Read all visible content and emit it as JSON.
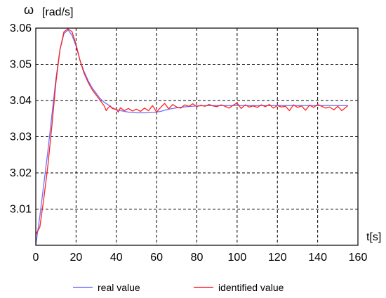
{
  "chart_data": {
    "type": "line",
    "ylabel_symbol": "ω",
    "ylabel_unit": "[rad/s]",
    "xlabel": "t[s]",
    "xlim": [
      0,
      160
    ],
    "ylim": [
      3.0,
      3.06
    ],
    "grid": true,
    "x_ticks": [
      0,
      20,
      40,
      60,
      80,
      100,
      120,
      140,
      160
    ],
    "x_tick_labels": [
      "0",
      "20",
      "40",
      "60",
      "80",
      "100",
      "120",
      "140",
      "160"
    ],
    "y_ticks": [
      3.01,
      3.02,
      3.03,
      3.04,
      3.05,
      3.06
    ],
    "y_tick_labels": [
      "3.01",
      "3.02",
      "3.03",
      "3.04",
      "3.05",
      "3.06"
    ],
    "legend_position": "bottom",
    "series": [
      {
        "name": "real value",
        "color": "#6f6fff",
        "x": [
          0,
          2,
          4,
          6,
          8,
          10,
          12,
          14,
          16,
          18,
          20,
          22,
          24,
          26,
          28,
          30,
          32,
          34,
          36,
          38,
          40,
          42,
          44,
          46,
          48,
          50,
          52,
          55,
          58,
          60,
          62,
          64,
          66,
          70,
          75,
          80,
          85,
          90,
          95,
          100,
          105,
          110,
          115,
          120,
          125,
          130,
          135,
          140,
          145,
          150,
          155
        ],
        "y": [
          3.0,
          3.008,
          3.017,
          3.026,
          3.036,
          3.046,
          3.054,
          3.0585,
          3.0595,
          3.058,
          3.055,
          3.051,
          3.048,
          3.0455,
          3.0435,
          3.042,
          3.0405,
          3.0395,
          3.0388,
          3.038,
          3.0375,
          3.0372,
          3.037,
          3.0368,
          3.0367,
          3.0366,
          3.0366,
          3.0366,
          3.0367,
          3.0368,
          3.037,
          3.0373,
          3.0376,
          3.038,
          3.0383,
          3.0385,
          3.0386,
          3.0386,
          3.0386,
          3.0386,
          3.0386,
          3.0386,
          3.0386,
          3.0386,
          3.0386,
          3.0386,
          3.0386,
          3.0386,
          3.0386,
          3.0386,
          3.0386
        ]
      },
      {
        "name": "identified value",
        "color": "#ff2020",
        "x": [
          0,
          2,
          4,
          6,
          8,
          10,
          12,
          14,
          16,
          18,
          20,
          22,
          24,
          26,
          28,
          30,
          32,
          34,
          35,
          36,
          37,
          38,
          40,
          41,
          42,
          44,
          46,
          48,
          50,
          52,
          54,
          56,
          58,
          60,
          62,
          64,
          66,
          68,
          70,
          72,
          74,
          76,
          78,
          80,
          82,
          84,
          86,
          88,
          90,
          92,
          94,
          96,
          98,
          100,
          102,
          104,
          106,
          108,
          110,
          112,
          114,
          116,
          118,
          120,
          122,
          124,
          126,
          128,
          130,
          132,
          134,
          136,
          138,
          140,
          142,
          144,
          146,
          148,
          150,
          152,
          154,
          155
        ],
        "y": [
          3.003,
          3.005,
          3.013,
          3.022,
          3.033,
          3.045,
          3.054,
          3.059,
          3.0598,
          3.059,
          3.0555,
          3.051,
          3.0475,
          3.045,
          3.043,
          3.0415,
          3.04,
          3.0385,
          3.0372,
          3.038,
          3.0385,
          3.0378,
          3.0375,
          3.0368,
          3.038,
          3.0372,
          3.0378,
          3.0371,
          3.0376,
          3.037,
          3.0379,
          3.0372,
          3.0386,
          3.0368,
          3.0381,
          3.0392,
          3.0377,
          3.0389,
          3.0382,
          3.0379,
          3.0388,
          3.0384,
          3.0391,
          3.0383,
          3.0387,
          3.0384,
          3.0389,
          3.0385,
          3.0383,
          3.0388,
          3.0384,
          3.0379,
          3.0387,
          3.0393,
          3.0378,
          3.0388,
          3.0382,
          3.0385,
          3.0381,
          3.0388,
          3.0383,
          3.0389,
          3.0379,
          3.0386,
          3.0382,
          3.0384,
          3.0372,
          3.0388,
          3.0381,
          3.0385,
          3.0373,
          3.0387,
          3.0381,
          3.0389,
          3.0384,
          3.0379,
          3.0382,
          3.0374,
          3.0384,
          3.0372,
          3.0381,
          3.0386
        ]
      }
    ]
  }
}
